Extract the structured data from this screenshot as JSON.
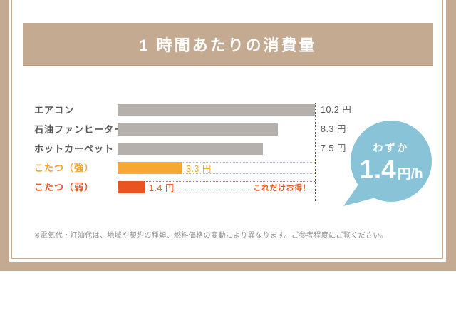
{
  "header": {
    "title": "1 時間あたりの消費量"
  },
  "chart_data": {
    "type": "bar",
    "orientation": "horizontal",
    "title": "1 時間あたりの消費量",
    "unit": "円/h",
    "xlim": [
      0,
      10.2
    ],
    "grid": false,
    "legend": false,
    "rows": [
      {
        "label": "エアコン",
        "value": 10.2,
        "display": "10.2 円",
        "emphasis": "none"
      },
      {
        "label": "石油ファンヒーター",
        "value": 8.3,
        "display": "8.3 円",
        "emphasis": "none"
      },
      {
        "label": "ホットカーペット",
        "value": 7.5,
        "display": "7.5 円",
        "emphasis": "none"
      },
      {
        "label": "こたつ（強）",
        "value": 3.3,
        "display": "3.3 円",
        "emphasis": "strong"
      },
      {
        "label": "こたつ（弱）",
        "value": 1.4,
        "display": "1.4 円",
        "emphasis": "weak"
      }
    ],
    "annotations": {
      "savings_note": "これだけお得！"
    },
    "colors": {
      "bar_default": "#b5b0ac",
      "bar_strong": "#f7a834",
      "bar_weak": "#e95520",
      "frame": "#c3aa91",
      "bubble": "#89c3d7",
      "text": "#595757"
    }
  },
  "bubble": {
    "lead": "わずか",
    "value": "1.4",
    "unit": "円/h"
  },
  "footer": {
    "note": "※電気代・灯油代は、地域や契約の種類、燃料価格の変動により異なります。ご参考程度にご覧ください。"
  }
}
